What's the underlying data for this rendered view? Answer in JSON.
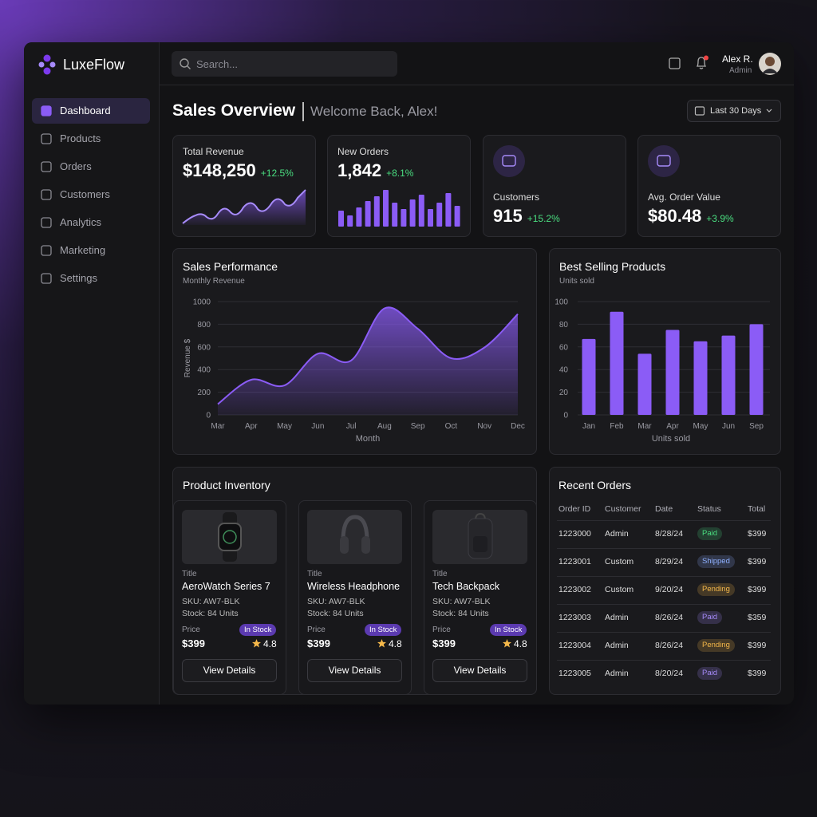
{
  "brand": "LuxeFlow",
  "search": "Search...",
  "user": {
    "name": "Alex R.",
    "role": "Admin"
  },
  "nav": [
    "Dashboard",
    "Products",
    "Orders",
    "Customers",
    "Analytics",
    "Marketing",
    "Settings"
  ],
  "header": {
    "title": "Sales Overview",
    "subtitle": "Welcome Back, Alex!",
    "date_range": "Last 30 Days"
  },
  "kpis": [
    {
      "label": "Total Revenue",
      "value": "$148,250",
      "change": "+12.5%"
    },
    {
      "label": "New Orders",
      "value": "1,842",
      "change": "+8.1%"
    },
    {
      "label": "Customers",
      "value": "915",
      "change": "+15.2%"
    },
    {
      "label": "Avg. Order Value",
      "value": "$80.48",
      "change": "+3.9%"
    }
  ],
  "sales_performance": {
    "type": "line",
    "title": "Sales Performance",
    "subtitle": "Monthly Revenue",
    "x_label": "Month",
    "y_label": "Revenue $",
    "color": "#8b5cf6",
    "categories": [
      "Mar",
      "Apr",
      "May",
      "Jun",
      "Jul",
      "Aug",
      "Sep",
      "Oct",
      "Nov",
      "Dec"
    ],
    "values": [
      95,
      310,
      260,
      540,
      480,
      940,
      760,
      500,
      595,
      890
    ],
    "ylim": [
      0,
      1000
    ],
    "yticks": [
      0,
      200,
      400,
      600,
      800,
      1000
    ],
    "grid": true
  },
  "best_selling": {
    "type": "bar",
    "title": "Best Selling Products",
    "subtitle": "Units sold",
    "x_label": "Units sold",
    "color": "#8b5cf6",
    "categories": [
      "Jan",
      "Feb",
      "Mar",
      "Apr",
      "May",
      "Jun",
      "Sep"
    ],
    "values": [
      67,
      91,
      54,
      75,
      65,
      70,
      80
    ],
    "ylim": [
      0,
      100
    ],
    "yticks": [
      0,
      20,
      40,
      60,
      80,
      100
    ],
    "grid": true
  },
  "inventory": {
    "title": "Product Inventory",
    "products": [
      {
        "title_label": "Title",
        "name": "AeroWatch Series 7",
        "sku": "SKU: AW7-BLK",
        "stock": "Stock: 84 Units",
        "price_label": "Price",
        "price": "$399",
        "status": "In Stock",
        "rating": "4.8",
        "button": "View Details"
      },
      {
        "title_label": "Title",
        "name": "Wireless Headphone",
        "sku": "SKU: AW7-BLK",
        "stock": "Stock: 84 Units",
        "price_label": "Price",
        "price": "$399",
        "status": "In Stock",
        "rating": "4.8",
        "button": "View Details"
      },
      {
        "title_label": "Title",
        "name": "Tech Backpack",
        "sku": "SKU: AW7-BLK",
        "stock": "Stock: 84 Units",
        "price_label": "Price",
        "price": "$399",
        "status": "In Stock",
        "rating": "4.8",
        "button": "View Details"
      }
    ]
  },
  "orders": {
    "title": "Recent Orders",
    "columns": [
      "Order ID",
      "Customer",
      "Date",
      "Status",
      "Total"
    ],
    "rows": [
      {
        "id": "1223000",
        "customer": "Admin",
        "date": "8/28/24",
        "status": {
          "text": "Paid",
          "color": "#4ade80"
        },
        "total": "$399"
      },
      {
        "id": "1223001",
        "customer": "Custom",
        "date": "8/29/24",
        "status": {
          "text": "Shipped",
          "color": "#8fb0ff"
        },
        "total": "$399"
      },
      {
        "id": "1223002",
        "customer": "Custom",
        "date": "9/20/24",
        "status": {
          "text": "Pending",
          "color": "#f5b84a"
        },
        "total": "$399"
      },
      {
        "id": "1223003",
        "customer": "Admin",
        "date": "8/26/24",
        "status": {
          "text": "Paid",
          "color": "#a78bfa"
        },
        "total": "$359"
      },
      {
        "id": "1223004",
        "customer": "Admin",
        "date": "8/26/24",
        "status": {
          "text": "Pending",
          "color": "#f5b84a"
        },
        "total": "$399"
      },
      {
        "id": "1223005",
        "customer": "Admin",
        "date": "8/20/24",
        "status": {
          "text": "Paid",
          "color": "#a78bfa"
        },
        "total": "$399"
      }
    ]
  }
}
